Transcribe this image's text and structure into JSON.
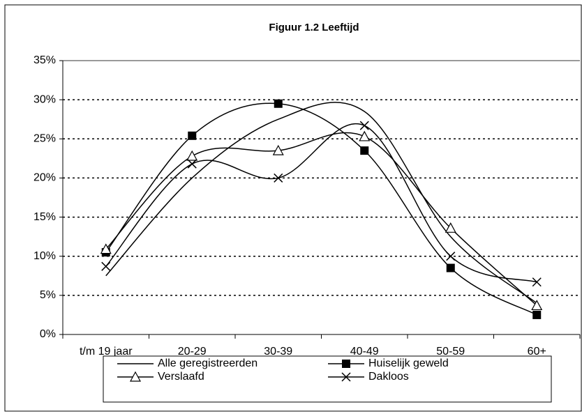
{
  "chart_data": {
    "type": "line",
    "title": "Figuur 1.2   Leeftijd",
    "categories": [
      "t/m 19 jaar",
      "20-29",
      "30-39",
      "40-49",
      "50-59",
      "60+"
    ],
    "series": [
      {
        "name": "Alle geregistreerden",
        "color": "#000000",
        "marker": "none",
        "values": [
          7.5,
          20,
          27.5,
          28.5,
          12.5,
          4
        ]
      },
      {
        "name": "Huiselijk geweld",
        "color": "#000000",
        "marker": "square",
        "values": [
          10.5,
          25.4,
          29.5,
          23.5,
          8.5,
          2.5
        ]
      },
      {
        "name": "Verslaafd",
        "color": "#000000",
        "marker": "triangle",
        "values": [
          10.9,
          22.8,
          23.5,
          25.3,
          13.6,
          3.7
        ]
      },
      {
        "name": "Dakloos",
        "color": "#000000",
        "marker": "cross",
        "values": [
          8.7,
          21.8,
          20,
          26.7,
          10,
          6.7
        ]
      }
    ],
    "ylim": [
      0,
      35
    ],
    "yticks": [
      {
        "value": 0,
        "label": "0%"
      },
      {
        "value": 5,
        "label": "5%"
      },
      {
        "value": 10,
        "label": "10%"
      },
      {
        "value": 15,
        "label": "15%"
      },
      {
        "value": 20,
        "label": "20%"
      },
      {
        "value": 25,
        "label": "25%"
      },
      {
        "value": 30,
        "label": "30%"
      },
      {
        "value": 35,
        "label": "35%"
      }
    ],
    "grid": true,
    "smooth": true,
    "legend": "bottom"
  }
}
